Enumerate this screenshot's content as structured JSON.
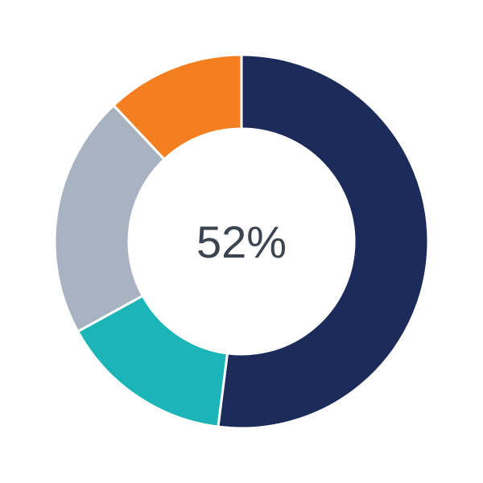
{
  "chart_data": {
    "type": "pie",
    "variant": "donut",
    "center_label": "52%",
    "start": "top",
    "direction": "clockwise",
    "slices": [
      {
        "value": 52,
        "color": "#1c2b5a"
      },
      {
        "value": 15,
        "color": "#1bb5b8"
      },
      {
        "value": 21,
        "color": "#a8b3c1"
      },
      {
        "value": 12,
        "color": "#f47f20"
      }
    ],
    "legend": "none"
  }
}
